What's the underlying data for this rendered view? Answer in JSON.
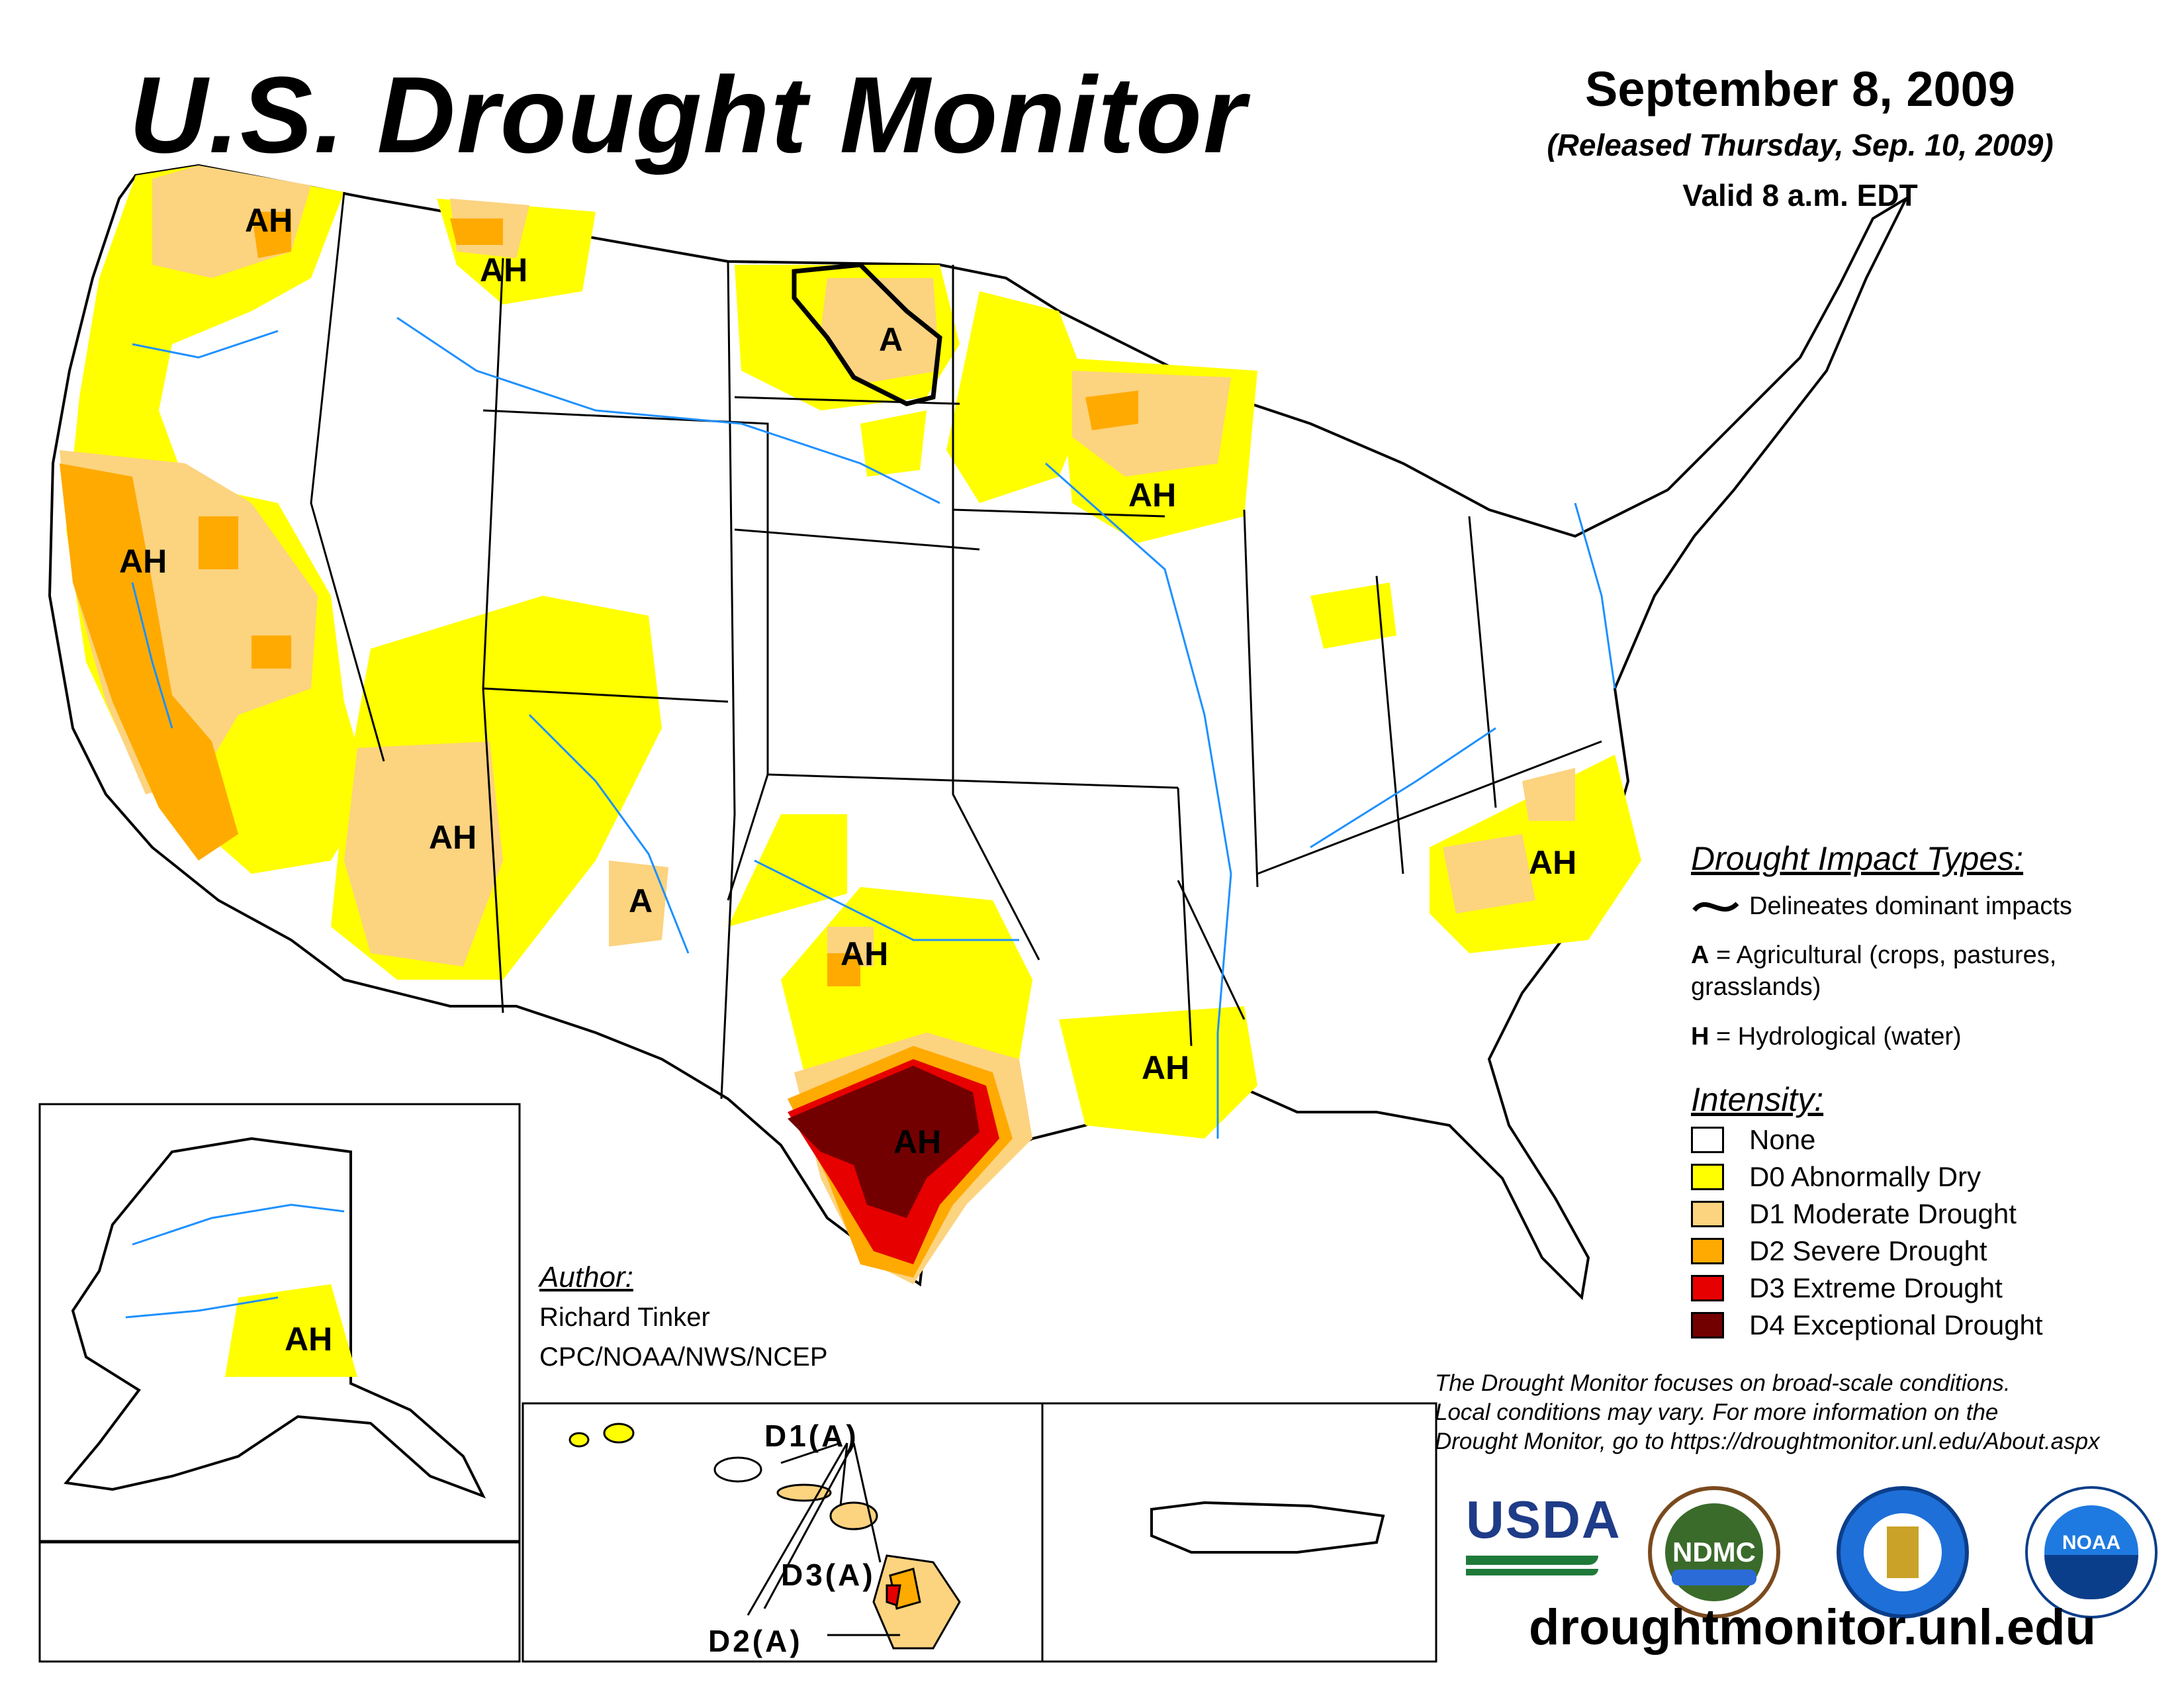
{
  "header": {
    "title": "U.S. Drought Monitor",
    "date": "September 8, 2009",
    "released": "(Released Thursday, Sep. 10, 2009)",
    "valid": "Valid 8 a.m. EDT"
  },
  "impact_legend": {
    "heading": "Drought Impact Types:",
    "line_desc": "Delineates dominant impacts",
    "a_key": "A",
    "a_desc": "= Agricultural (crops, pastures,",
    "a_desc2": "grasslands)",
    "h_key": "H",
    "h_desc": "= Hydrological (water)"
  },
  "intensity_legend": {
    "heading": "Intensity:",
    "items": [
      {
        "label": "None",
        "color": "#ffffff"
      },
      {
        "label": "D0 Abnormally Dry",
        "color": "#ffff00"
      },
      {
        "label": "D1 Moderate Drought",
        "color": "#fcd37f"
      },
      {
        "label": "D2 Severe Drought",
        "color": "#ffaa00"
      },
      {
        "label": "D3 Extreme Drought",
        "color": "#e60000"
      },
      {
        "label": "D4 Exceptional Drought",
        "color": "#730000"
      }
    ]
  },
  "map_labels": {
    "wa": "AH",
    "mt": "AH",
    "nd": "A",
    "wi": "AH",
    "ca": "AH",
    "az": "AH",
    "nm": "A",
    "ok": "AH",
    "la": "AH",
    "tx": "AH",
    "nc": "AH",
    "ak": "AH",
    "hi_d1": "D1(A)",
    "hi_d3": "D3(A)",
    "hi_d2": "D2(A)"
  },
  "author": {
    "heading": "Author:",
    "name": "Richard Tinker",
    "org": "CPC/NOAA/NWS/NCEP"
  },
  "note": {
    "line1": "The Drought Monitor focuses on broad-scale conditions.",
    "line2": "Local conditions may vary. For more information on the",
    "line3": "Drought Monitor, go to https://droughtmonitor.unl.edu/About.aspx"
  },
  "logos": {
    "usda": "USDA",
    "ndmc": "NDMC",
    "noaa": "NOAA"
  },
  "website": "droughtmonitor.unl.edu"
}
